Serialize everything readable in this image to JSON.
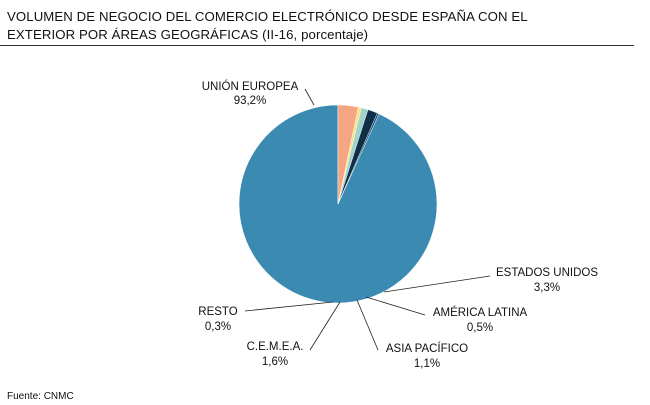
{
  "chart_data": {
    "type": "pie",
    "title_line1": "VOLUMEN DE NEGOCIO DEL COMERCIO ELECTRÓNICO DESDE ESPAÑA CON EL",
    "title_line2": "EXTERIOR POR ÁREAS GEOGRÁFICAS (II-16, porcentaje)",
    "slices": [
      {
        "name": "UNIÓN EUROPEA",
        "value": 93.2,
        "value_label": "93,2%",
        "color": "#3A8AB2"
      },
      {
        "name": "ESTADOS UNIDOS",
        "value": 3.3,
        "value_label": "3,3%",
        "color": "#F4A582"
      },
      {
        "name": "AMÉRICA LATINA",
        "value": 0.5,
        "value_label": "0,5%",
        "color": "#FDE07C"
      },
      {
        "name": "ASIA PACÍFICO",
        "value": 1.1,
        "value_label": "1,1%",
        "color": "#9FD3CB"
      },
      {
        "name": "C.E.M.E.A.",
        "value": 1.6,
        "value_label": "1,6%",
        "color": "#0F2F47"
      },
      {
        "name": "RESTO",
        "value": 0.3,
        "value_label": "0,3%",
        "color": "#1B4F7A"
      }
    ],
    "source": "Fuente: CNMC"
  }
}
